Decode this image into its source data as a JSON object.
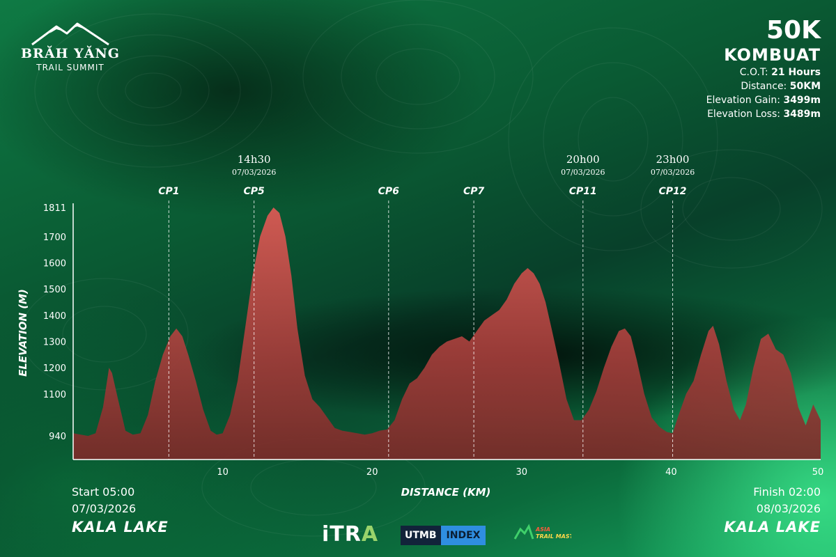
{
  "logo": {
    "name": "BRĂH YĂNG",
    "sub": "TRAIL SUMMIT"
  },
  "race": {
    "distance_title": "50K",
    "name": "KOMBUAT",
    "stats": [
      {
        "label": "C.O.T:",
        "value": "21 Hours"
      },
      {
        "label": "Distance:",
        "value": "50KM"
      },
      {
        "label": "Elevation Gain:",
        "value": "3499m"
      },
      {
        "label": "Elevation Loss:",
        "value": "3489m"
      }
    ]
  },
  "start": {
    "time": "Start 05:00",
    "date": "07/03/2026",
    "place": "KALA LAKE"
  },
  "finish": {
    "time": "Finish 02:00",
    "date": "08/03/2026",
    "place": "KALA LAKE"
  },
  "sponsors": {
    "itra_main": "iTR",
    "itra_end": "A",
    "utmb_left": "UTMB",
    "utmb_right": "INDEX",
    "atm_label": "ASIA TRAIL MASTER"
  },
  "colors": {
    "fill_top": "#e05a55",
    "fill_bottom": "#7a2a28",
    "accent": "#16a35e"
  },
  "chart_data": {
    "type": "area",
    "xlabel": "DISTANCE (KM)",
    "ylabel": "ELEVATION (M)",
    "xlim": [
      0,
      50
    ],
    "ylim": [
      850,
      1811
    ],
    "x_ticks": [
      10,
      20,
      30,
      40,
      50
    ],
    "y_ticks": [
      940,
      1100,
      1200,
      1300,
      1400,
      1500,
      1600,
      1700,
      1811
    ],
    "grid": false,
    "checkpoints": [
      {
        "name": "CP1",
        "km": 6.4,
        "time": "",
        "date": ""
      },
      {
        "name": "CP5",
        "km": 12.1,
        "time": "14h30",
        "date": "07/03/2026"
      },
      {
        "name": "CP6",
        "km": 21.1,
        "time": "",
        "date": ""
      },
      {
        "name": "CP7",
        "km": 26.8,
        "time": "",
        "date": ""
      },
      {
        "name": "CP11",
        "km": 34.1,
        "time": "20h00",
        "date": "07/03/2026"
      },
      {
        "name": "CP12",
        "km": 40.1,
        "time": "23h00",
        "date": "07/03/2026"
      }
    ],
    "profile": {
      "x": [
        0,
        1,
        1.5,
        2,
        2.4,
        2.6,
        3,
        3.5,
        4,
        4.5,
        5,
        5.5,
        6,
        6.5,
        6.9,
        7.3,
        7.7,
        8.2,
        8.7,
        9.2,
        9.6,
        10,
        10.5,
        11,
        11.5,
        12,
        12.5,
        13,
        13.4,
        13.8,
        14.2,
        14.6,
        15,
        15.5,
        16,
        16.5,
        17,
        17.5,
        18,
        18.5,
        19,
        19.5,
        20,
        20.5,
        21,
        21.5,
        22,
        22.5,
        23,
        23.5,
        24,
        24.5,
        25,
        25.5,
        26,
        26.5,
        27,
        27.5,
        28,
        28.5,
        29,
        29.5,
        30,
        30.4,
        30.8,
        31.2,
        31.6,
        32,
        32.5,
        33,
        33.5,
        34,
        34.5,
        35,
        35.5,
        36,
        36.5,
        36.9,
        37.3,
        37.7,
        38.2,
        38.7,
        39.2,
        39.7,
        40.1,
        40.5,
        41,
        41.5,
        42,
        42.5,
        42.8,
        43.2,
        43.7,
        44.2,
        44.6,
        45,
        45.5,
        46,
        46.5,
        47,
        47.5,
        48,
        48.5,
        49,
        49.5,
        50
      ],
      "y": [
        950,
        940,
        950,
        1050,
        1200,
        1180,
        1080,
        960,
        945,
        950,
        1020,
        1150,
        1250,
        1320,
        1350,
        1320,
        1250,
        1150,
        1040,
        960,
        945,
        950,
        1020,
        1150,
        1350,
        1550,
        1700,
        1780,
        1811,
        1790,
        1700,
        1550,
        1350,
        1170,
        1080,
        1050,
        1010,
        970,
        960,
        955,
        950,
        945,
        950,
        960,
        965,
        1000,
        1080,
        1140,
        1160,
        1200,
        1250,
        1280,
        1300,
        1310,
        1320,
        1300,
        1340,
        1380,
        1400,
        1420,
        1460,
        1520,
        1560,
        1580,
        1560,
        1520,
        1450,
        1350,
        1220,
        1080,
        1000,
        1000,
        1040,
        1110,
        1200,
        1280,
        1340,
        1350,
        1320,
        1230,
        1100,
        1010,
        975,
        955,
        950,
        1020,
        1100,
        1150,
        1250,
        1340,
        1360,
        1290,
        1150,
        1040,
        1000,
        1060,
        1200,
        1310,
        1330,
        1270,
        1250,
        1180,
        1050,
        980,
        1060,
        1000
      ]
    }
  }
}
